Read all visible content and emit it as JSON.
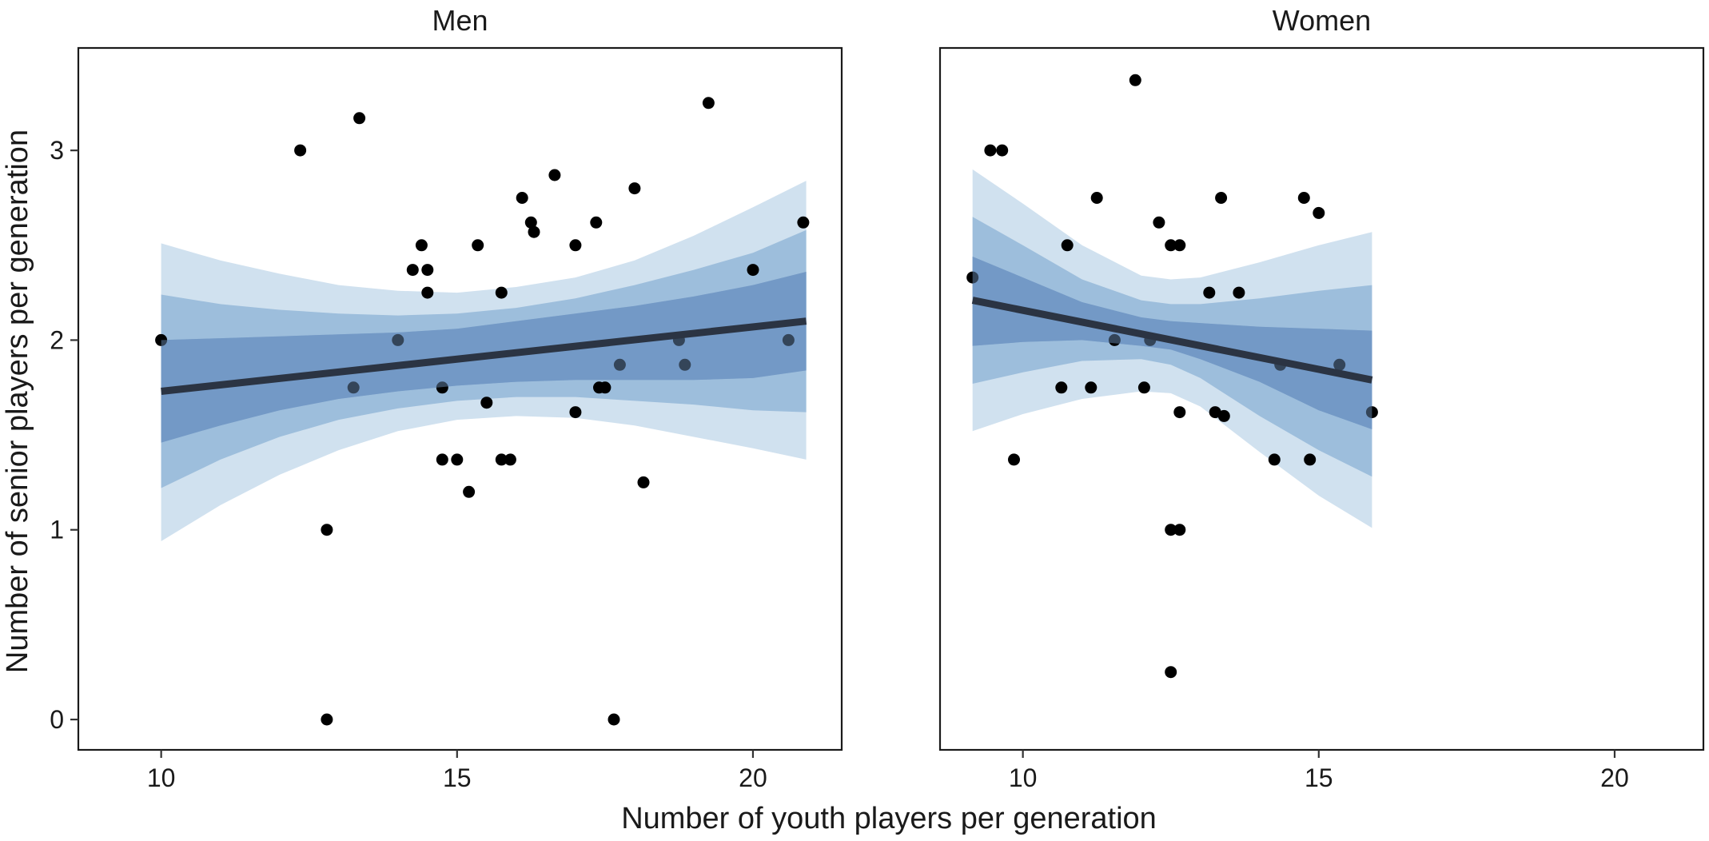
{
  "chart_data": {
    "type": "scatter",
    "xlabel": "Number of youth players per generation",
    "ylabel": "Number of senior players per generation",
    "xlim": [
      8.6,
      21.5
    ],
    "ylim": [
      -0.16,
      3.54
    ],
    "xticks": [
      10,
      15,
      20
    ],
    "yticks": [
      0,
      1,
      2,
      3
    ],
    "band_colors": [
      "#d0e1ef",
      "#9dbedc",
      "#7399c6"
    ],
    "line_color": "#2b3443",
    "point_color": "#000000",
    "panels": [
      {
        "title": "Men",
        "fit_line": {
          "x": [
            10,
            20.9
          ],
          "y": [
            1.73,
            2.1
          ]
        },
        "bands": {
          "x": [
            10,
            11,
            12,
            13,
            14,
            15,
            16,
            17,
            18,
            19,
            20,
            20.9
          ],
          "outer_lower": [
            0.94,
            1.13,
            1.29,
            1.42,
            1.52,
            1.58,
            1.6,
            1.59,
            1.55,
            1.49,
            1.43,
            1.37
          ],
          "outer_upper": [
            2.51,
            2.42,
            2.35,
            2.29,
            2.26,
            2.25,
            2.28,
            2.33,
            2.42,
            2.55,
            2.7,
            2.84
          ],
          "mid_lower": [
            1.22,
            1.37,
            1.49,
            1.58,
            1.64,
            1.68,
            1.7,
            1.7,
            1.68,
            1.66,
            1.63,
            1.62
          ],
          "mid_upper": [
            2.24,
            2.19,
            2.16,
            2.14,
            2.13,
            2.14,
            2.17,
            2.22,
            2.29,
            2.37,
            2.46,
            2.58
          ],
          "inner_lower": [
            1.46,
            1.55,
            1.63,
            1.69,
            1.73,
            1.76,
            1.78,
            1.79,
            1.79,
            1.79,
            1.8,
            1.84
          ],
          "inner_upper": [
            2.0,
            2.01,
            2.02,
            2.03,
            2.04,
            2.06,
            2.1,
            2.14,
            2.18,
            2.23,
            2.29,
            2.36
          ]
        },
        "points": {
          "x": [
            10.0,
            12.35,
            12.8,
            12.8,
            13.25,
            13.35,
            14.0,
            14.25,
            14.4,
            14.5,
            14.5,
            14.75,
            14.75,
            15.0,
            15.2,
            15.35,
            15.5,
            15.75,
            15.75,
            15.9,
            16.1,
            16.25,
            16.3,
            16.65,
            17.0,
            17.0,
            17.35,
            17.4,
            17.5,
            17.65,
            17.75,
            18.0,
            18.15,
            18.75,
            18.85,
            19.25,
            20.0,
            20.6,
            20.85
          ],
          "y": [
            2.0,
            3.0,
            1.0,
            0.0,
            1.75,
            3.17,
            2.0,
            2.37,
            2.5,
            2.37,
            2.25,
            1.75,
            1.37,
            1.37,
            1.2,
            2.5,
            1.67,
            1.37,
            2.25,
            1.37,
            2.75,
            2.62,
            2.57,
            2.87,
            2.5,
            1.62,
            2.62,
            1.75,
            1.75,
            0.0,
            1.87,
            2.8,
            1.25,
            2.0,
            1.87,
            3.25,
            2.37,
            2.0,
            2.62
          ]
        }
      },
      {
        "title": "Women",
        "fit_line": {
          "x": [
            9.15,
            15.9
          ],
          "y": [
            2.21,
            1.79
          ]
        },
        "bands": {
          "x": [
            9.15,
            10,
            11,
            12,
            12.5,
            13,
            14,
            15,
            15.9
          ],
          "outer_lower": [
            1.52,
            1.61,
            1.69,
            1.73,
            1.72,
            1.65,
            1.41,
            1.18,
            1.01
          ],
          "outer_upper": [
            2.9,
            2.72,
            2.5,
            2.34,
            2.32,
            2.33,
            2.41,
            2.5,
            2.57
          ],
          "mid_lower": [
            1.77,
            1.83,
            1.89,
            1.9,
            1.87,
            1.8,
            1.6,
            1.42,
            1.28
          ],
          "mid_upper": [
            2.65,
            2.5,
            2.32,
            2.21,
            2.19,
            2.19,
            2.22,
            2.26,
            2.29
          ],
          "inner_lower": [
            1.97,
            1.99,
            2.0,
            1.97,
            1.95,
            1.9,
            1.78,
            1.63,
            1.53
          ],
          "inner_upper": [
            2.44,
            2.33,
            2.2,
            2.12,
            2.1,
            2.09,
            2.07,
            2.06,
            2.05
          ]
        },
        "points": {
          "x": [
            9.15,
            9.45,
            9.65,
            9.85,
            10.65,
            10.75,
            11.15,
            11.25,
            11.55,
            11.9,
            12.05,
            12.15,
            12.3,
            12.5,
            12.5,
            12.5,
            12.65,
            12.65,
            12.65,
            13.15,
            13.25,
            13.35,
            13.4,
            13.65,
            14.25,
            14.35,
            14.75,
            14.85,
            15.0,
            15.35,
            15.9
          ],
          "y": [
            2.33,
            3.0,
            3.0,
            1.37,
            1.75,
            2.5,
            1.75,
            2.75,
            2.0,
            3.37,
            1.75,
            2.0,
            2.62,
            2.5,
            1.0,
            0.25,
            2.5,
            1.62,
            1.0,
            2.25,
            1.62,
            2.75,
            1.6,
            2.25,
            1.37,
            1.87,
            2.75,
            1.37,
            2.67,
            1.87,
            1.62
          ]
        }
      }
    ]
  }
}
